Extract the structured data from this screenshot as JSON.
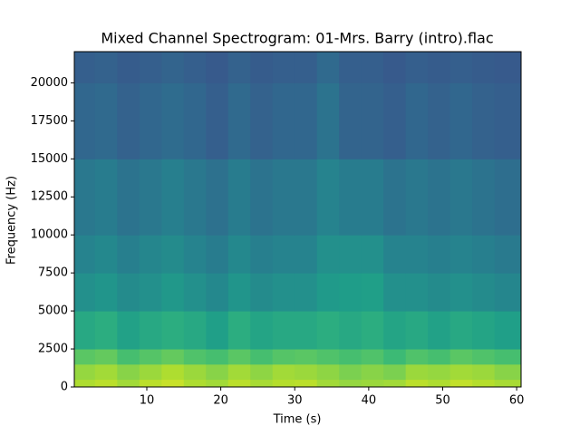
{
  "chart_data": {
    "type": "spectrogram",
    "title": "Mixed Channel Spectrogram: 01-Mrs. Barry (intro).flac",
    "x_label": "Time (s)",
    "y_label": "Frequency (Hz)",
    "xlim": [
      0.2,
      60.6
    ],
    "ylim": [
      0,
      22050
    ],
    "xticks": [
      10,
      20,
      30,
      40,
      50,
      60
    ],
    "yticks": [
      0,
      2500,
      5000,
      7500,
      10000,
      12500,
      15000,
      17500,
      20000
    ],
    "colormap": "viridis",
    "time_bins": [
      0.2,
      3,
      6,
      9,
      12,
      15,
      18,
      21,
      24,
      27,
      30,
      33,
      36,
      39,
      42,
      45,
      48,
      51,
      54,
      57,
      60.6
    ],
    "freq_bins": [
      0,
      500,
      1500,
      2500,
      5000,
      7500,
      10000,
      15000,
      20000,
      22050
    ],
    "z": [
      [
        0.88,
        0.9,
        0.86,
        0.9,
        0.92,
        0.88,
        0.86,
        0.9,
        0.87,
        0.89,
        0.9,
        0.86,
        0.84,
        0.85,
        0.86,
        0.9,
        0.88,
        0.91,
        0.89,
        0.87
      ],
      [
        0.84,
        0.86,
        0.82,
        0.85,
        0.88,
        0.85,
        0.82,
        0.86,
        0.83,
        0.86,
        0.85,
        0.83,
        0.8,
        0.82,
        0.8,
        0.85,
        0.84,
        0.86,
        0.85,
        0.82
      ],
      [
        0.74,
        0.76,
        0.7,
        0.73,
        0.76,
        0.72,
        0.7,
        0.74,
        0.7,
        0.73,
        0.74,
        0.72,
        0.7,
        0.72,
        0.68,
        0.72,
        0.7,
        0.74,
        0.72,
        0.7
      ],
      [
        0.6,
        0.62,
        0.57,
        0.6,
        0.62,
        0.6,
        0.56,
        0.62,
        0.58,
        0.6,
        0.6,
        0.62,
        0.6,
        0.62,
        0.58,
        0.6,
        0.57,
        0.6,
        0.58,
        0.56
      ],
      [
        0.5,
        0.52,
        0.48,
        0.5,
        0.53,
        0.5,
        0.47,
        0.52,
        0.48,
        0.5,
        0.5,
        0.54,
        0.55,
        0.56,
        0.5,
        0.5,
        0.48,
        0.5,
        0.48,
        0.46
      ],
      [
        0.45,
        0.47,
        0.43,
        0.46,
        0.48,
        0.45,
        0.42,
        0.47,
        0.43,
        0.45,
        0.45,
        0.5,
        0.5,
        0.5,
        0.45,
        0.45,
        0.43,
        0.45,
        0.43,
        0.41
      ],
      [
        0.4,
        0.42,
        0.38,
        0.4,
        0.43,
        0.4,
        0.37,
        0.42,
        0.38,
        0.4,
        0.4,
        0.45,
        0.42,
        0.42,
        0.38,
        0.4,
        0.38,
        0.4,
        0.38,
        0.36
      ],
      [
        0.33,
        0.34,
        0.31,
        0.33,
        0.35,
        0.33,
        0.3,
        0.34,
        0.31,
        0.33,
        0.33,
        0.38,
        0.32,
        0.32,
        0.3,
        0.33,
        0.31,
        0.33,
        0.31,
        0.3
      ],
      [
        0.3,
        0.31,
        0.29,
        0.3,
        0.32,
        0.3,
        0.28,
        0.31,
        0.29,
        0.3,
        0.3,
        0.34,
        0.3,
        0.3,
        0.28,
        0.3,
        0.29,
        0.3,
        0.29,
        0.28
      ]
    ]
  }
}
